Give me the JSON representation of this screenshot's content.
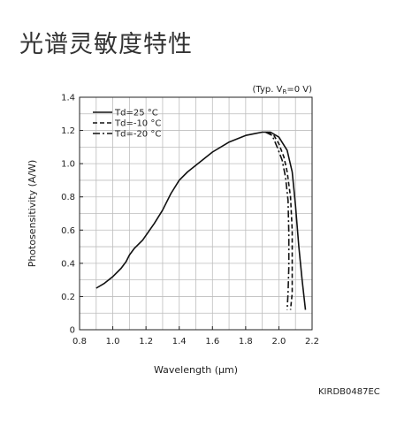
{
  "page": {
    "title": "光谱灵敏度特性",
    "code": "KIRDB0487EC"
  },
  "chart_data": {
    "type": "line",
    "title": "",
    "condition_note": "(Typ. V",
    "condition_sub": "R",
    "condition_tail": "=0 V)",
    "xlabel": "Wavelength (μm)",
    "ylabel": "Photosensitivity (A/W)",
    "xlim": [
      0.8,
      2.2
    ],
    "ylim": [
      0,
      1.4
    ],
    "x_ticks": [
      0.8,
      1.0,
      1.2,
      1.4,
      1.6,
      1.8,
      2.0,
      2.2
    ],
    "x_tick_labels": [
      "0.8",
      "1.0",
      "1.2",
      "1.4",
      "1.6",
      "1.8",
      "2.0",
      "2.2"
    ],
    "y_ticks": [
      0,
      0.2,
      0.4,
      0.6,
      0.8,
      1.0,
      1.2,
      1.4
    ],
    "y_tick_labels": [
      "0",
      "0.2",
      "0.4",
      "0.6",
      "0.8",
      "1.0",
      "1.2",
      "1.4"
    ],
    "grid": true,
    "grid_step_x": 0.1,
    "grid_step_y": 0.1,
    "legend_position": "top-left",
    "series": [
      {
        "name": "Td=25 °C",
        "dash": "solid",
        "points": [
          [
            0.9,
            0.25
          ],
          [
            0.95,
            0.28
          ],
          [
            1.0,
            0.32
          ],
          [
            1.05,
            0.37
          ],
          [
            1.08,
            0.41
          ],
          [
            1.1,
            0.45
          ],
          [
            1.13,
            0.49
          ],
          [
            1.18,
            0.54
          ],
          [
            1.25,
            0.64
          ],
          [
            1.3,
            0.72
          ],
          [
            1.35,
            0.82
          ],
          [
            1.4,
            0.9
          ],
          [
            1.45,
            0.95
          ],
          [
            1.5,
            0.99
          ],
          [
            1.6,
            1.07
          ],
          [
            1.7,
            1.13
          ],
          [
            1.8,
            1.17
          ],
          [
            1.85,
            1.18
          ],
          [
            1.9,
            1.19
          ],
          [
            1.95,
            1.19
          ],
          [
            2.0,
            1.16
          ],
          [
            2.05,
            1.08
          ],
          [
            2.08,
            0.95
          ],
          [
            2.1,
            0.75
          ],
          [
            2.12,
            0.5
          ],
          [
            2.14,
            0.3
          ],
          [
            2.16,
            0.12
          ]
        ]
      },
      {
        "name": "Td=-10 °C",
        "dash": "dashed",
        "points": [
          [
            1.93,
            1.19
          ],
          [
            1.97,
            1.17
          ],
          [
            2.0,
            1.12
          ],
          [
            2.03,
            1.04
          ],
          [
            2.05,
            0.95
          ],
          [
            2.07,
            0.8
          ],
          [
            2.08,
            0.6
          ],
          [
            2.08,
            0.4
          ],
          [
            2.08,
            0.22
          ],
          [
            2.07,
            0.12
          ]
        ]
      },
      {
        "name": "Td=-20 °C",
        "dash": "dashdot",
        "points": [
          [
            1.92,
            1.19
          ],
          [
            1.96,
            1.17
          ],
          [
            1.99,
            1.1
          ],
          [
            2.02,
            1.02
          ],
          [
            2.04,
            0.92
          ],
          [
            2.055,
            0.78
          ],
          [
            2.06,
            0.58
          ],
          [
            2.06,
            0.38
          ],
          [
            2.055,
            0.22
          ],
          [
            2.05,
            0.12
          ]
        ]
      }
    ]
  }
}
